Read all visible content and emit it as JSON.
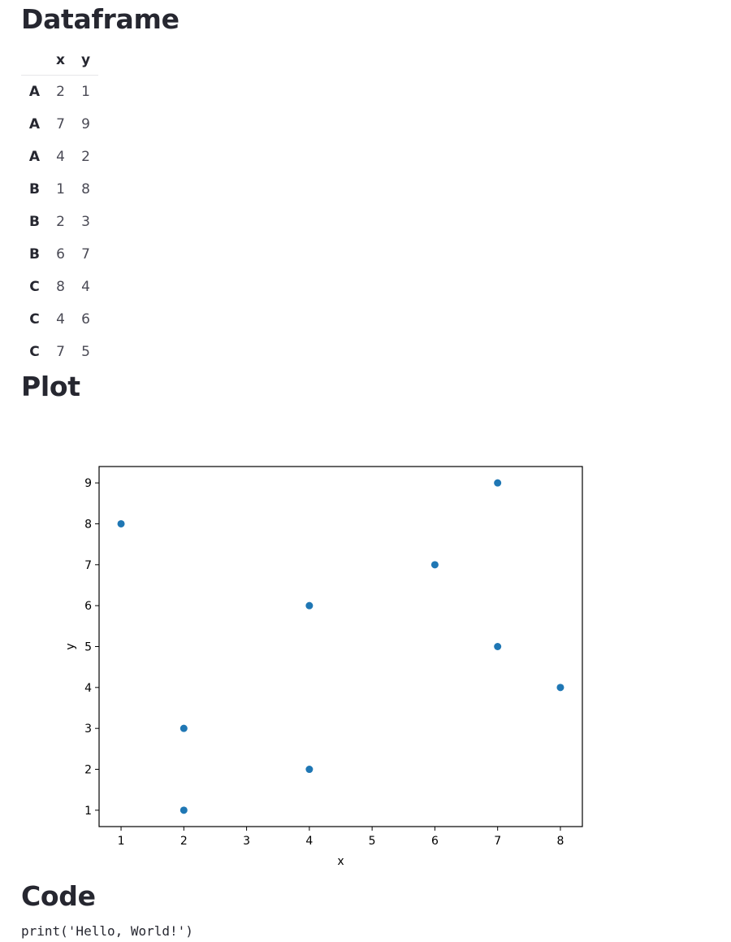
{
  "headings": {
    "dataframe": "Dataframe",
    "plot": "Plot",
    "code": "Code"
  },
  "dataframe": {
    "columns": [
      "x",
      "y"
    ],
    "rows": [
      {
        "index": "A",
        "x": "2",
        "y": "1"
      },
      {
        "index": "A",
        "x": "7",
        "y": "9"
      },
      {
        "index": "A",
        "x": "4",
        "y": "2"
      },
      {
        "index": "B",
        "x": "1",
        "y": "8"
      },
      {
        "index": "B",
        "x": "2",
        "y": "3"
      },
      {
        "index": "B",
        "x": "6",
        "y": "7"
      },
      {
        "index": "C",
        "x": "8",
        "y": "4"
      },
      {
        "index": "C",
        "x": "4",
        "y": "6"
      },
      {
        "index": "C",
        "x": "7",
        "y": "5"
      }
    ]
  },
  "chart_data": {
    "type": "scatter",
    "x": [
      2,
      7,
      4,
      1,
      2,
      6,
      8,
      4,
      7
    ],
    "y": [
      1,
      9,
      2,
      8,
      3,
      7,
      4,
      6,
      5
    ],
    "xlabel": "x",
    "ylabel": "y",
    "xlim": [
      0.65,
      8.35
    ],
    "ylim": [
      0.6,
      9.4
    ],
    "xticks": [
      1,
      2,
      3,
      4,
      5,
      6,
      7,
      8
    ],
    "yticks": [
      1,
      2,
      3,
      4,
      5,
      6,
      7,
      8,
      9
    ],
    "grid": false,
    "marker_color": "#1f77b4"
  },
  "code": {
    "text": "print('Hello, World!')"
  }
}
